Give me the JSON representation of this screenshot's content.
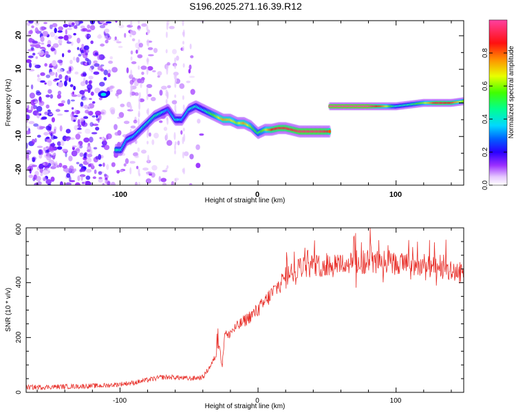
{
  "title": "S196.2025.271.16.39.R12",
  "chart_data": [
    {
      "type": "heatmap",
      "xlabel": "Height of straight line (km)",
      "ylabel": "Frequency (Hz)",
      "xlim": [
        -168,
        149
      ],
      "ylim": [
        -24.5,
        24.5
      ],
      "xticks": [
        -100,
        0,
        100
      ],
      "yticks": [
        -20,
        -10,
        0,
        10,
        20
      ],
      "colorbar": {
        "label": "Normalized spectral amplitude",
        "range": [
          0,
          1
        ],
        "ticks": [
          0.0,
          0.2,
          0.4,
          0.6,
          0.8
        ]
      },
      "ridge": {
        "x": [
          -103,
          -99,
          -95,
          -90,
          -85,
          -80,
          -75,
          -70,
          -65,
          -60,
          -55,
          -50,
          -45,
          -40,
          -35,
          -30,
          -25,
          -20,
          -15,
          -10,
          -5,
          0,
          5,
          10,
          15,
          20,
          25,
          30,
          35,
          40,
          45,
          50,
          52
        ],
        "freq": [
          -14,
          -14,
          -11,
          -10,
          -8,
          -6,
          -4,
          -3,
          -2,
          -5,
          -5,
          -2,
          -1,
          -2,
          -3,
          -4,
          -5,
          -5,
          -6,
          -6,
          -7,
          -9,
          -8,
          -8,
          -7.5,
          -7.5,
          -8,
          -8.5,
          -8.5,
          -8.5,
          -8.5,
          -8.5,
          -8.5
        ],
        "amplitude": [
          0.45,
          0.4,
          0.35,
          0.35,
          0.4,
          0.4,
          0.45,
          0.4,
          0.3,
          0.4,
          0.35,
          0.4,
          0.4,
          0.35,
          0.5,
          0.6,
          0.75,
          0.7,
          0.6,
          0.75,
          0.6,
          0.5,
          0.6,
          0.85,
          0.9,
          0.9,
          0.9,
          0.95,
          0.95,
          0.95,
          0.95,
          0.9,
          0.8
        ]
      },
      "ridge2": {
        "x": [
          52,
          60,
          70,
          80,
          90,
          100,
          110,
          120,
          130,
          140,
          149
        ],
        "freq": [
          -1,
          -1,
          -1,
          -1,
          -1,
          -1,
          -0.5,
          0,
          0,
          0,
          0.5
        ],
        "amplitude": [
          1.0,
          1.0,
          1.0,
          1.0,
          0.8,
          0.4,
          0.45,
          0.6,
          0.9,
          0.85,
          0.6
        ]
      }
    },
    {
      "type": "line",
      "xlabel": "Height of straight line (km)",
      "ylabel": "SNR (10 * v/v)",
      "xlim": [
        -168,
        149
      ],
      "ylim": [
        0,
        600
      ],
      "xticks": [
        -100,
        0,
        100
      ],
      "yticks": [
        0,
        200,
        400,
        600
      ],
      "series": [
        {
          "name": "SNR",
          "color": "#e8302a",
          "x": [
            -168,
            -150,
            -130,
            -110,
            -100,
            -90,
            -80,
            -70,
            -60,
            -50,
            -40,
            -34,
            -30,
            -28,
            -26,
            -24,
            -22,
            -20,
            -15,
            -10,
            -5,
            0,
            5,
            10,
            15,
            20,
            25,
            30,
            40,
            50,
            60,
            70,
            80,
            90,
            100,
            110,
            120,
            130,
            140,
            149
          ],
          "y": [
            18,
            20,
            22,
            25,
            30,
            35,
            45,
            55,
            55,
            50,
            55,
            100,
            140,
            180,
            90,
            230,
            200,
            220,
            240,
            260,
            280,
            300,
            330,
            360,
            390,
            420,
            440,
            455,
            460,
            465,
            470,
            470,
            475,
            475,
            470,
            465,
            460,
            450,
            440,
            435
          ]
        }
      ]
    }
  ]
}
